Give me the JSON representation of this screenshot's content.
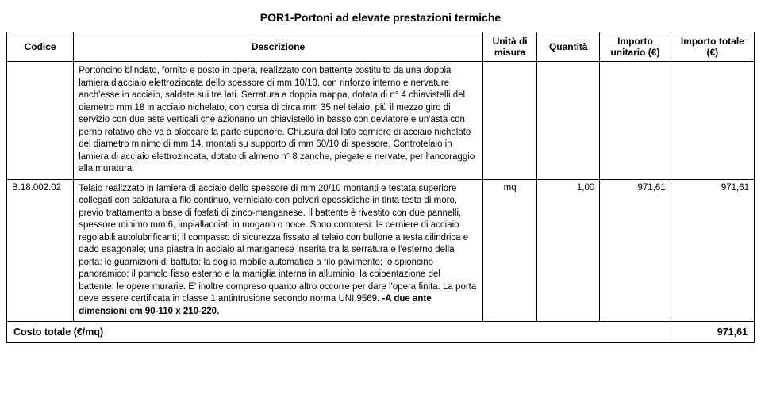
{
  "title": "POR1-Portoni ad elevate prestazioni termiche",
  "headers": {
    "codice": "Codice",
    "descrizione": "Descrizione",
    "unita": "Unità di misura",
    "quantita": "Quantità",
    "unitario": "Importo unitario (€)",
    "totale": "Importo totale (€)"
  },
  "row1": {
    "desc": "Portoncino blindato, fornito e posto in opera, realizzato con battente costituito da una doppia lamiera d'acciaio elettrozincata dello spessore di mm 10/10, con rinforzo interno e nervature anch'esse in acciaio, saldate sui tre lati. Serratura a doppia mappa, dotata di n° 4 chiavistelli del diametro mm 18 in acciaio nichelato, con corsa di circa mm 35 nel telaio, più il mezzo giro di servizio con due aste verticali che azionano un chiavistello in basso con deviatore e un'asta con perno rotativo che va a bloccare la parte superiore. Chiusura dal lato cerniere di acciaio nichelato del diametro minimo di mm 14, montati su supporto di mm 60/10 di spessore. Controtelaio in lamiera di acciaio elettrozincata, dotato di almeno n° 8 zanche, piegate e nervate, per l'ancoraggio alla muratura."
  },
  "row2": {
    "codice": "B.18.002.02",
    "desc_plain": "Telaio realizzato in lamiera di acciaio dello spessore di mm 20/10 montanti e testata superiore collegati con saldatura a filo continuo, verniciato con polveri epossidiche in tinta testa di moro, previo trattamento a base di fosfati di zinco-manganese. Il battente è rivestito con due pannelli, spessore minimo mm 6, impiallacciati in mogano o noce. Sono compresi: le cerniere di acciaio regolabili autolubrificanti; il compasso di sicurezza fissato al telaio con bullone a testa cilindrica e dado esagonale; una piastra in acciaio al manganese inserita tra la serratura e l'esterno della porta; le guarnizioni di battuta; la soglia mobile automatica a filo pavimento; lo spioncino panoramico; il pomolo fisso esterno e la maniglia interna in alluminio; la coibentazione del battente; le opere murarie. E' inoltre compreso quanto altro occorre per dare l'opera finita. La porta deve essere certificata in classe 1 antintrusione secondo norma UNI 9569. ",
    "desc_bold": "-A due ante dimensioni cm 90-110 x 210-220.",
    "unita": "mq",
    "quantita": "1,00",
    "unitario": "971,61",
    "totale": "971,61"
  },
  "footer": {
    "label": "Costo totale (€/mq)",
    "value": "971,61"
  }
}
